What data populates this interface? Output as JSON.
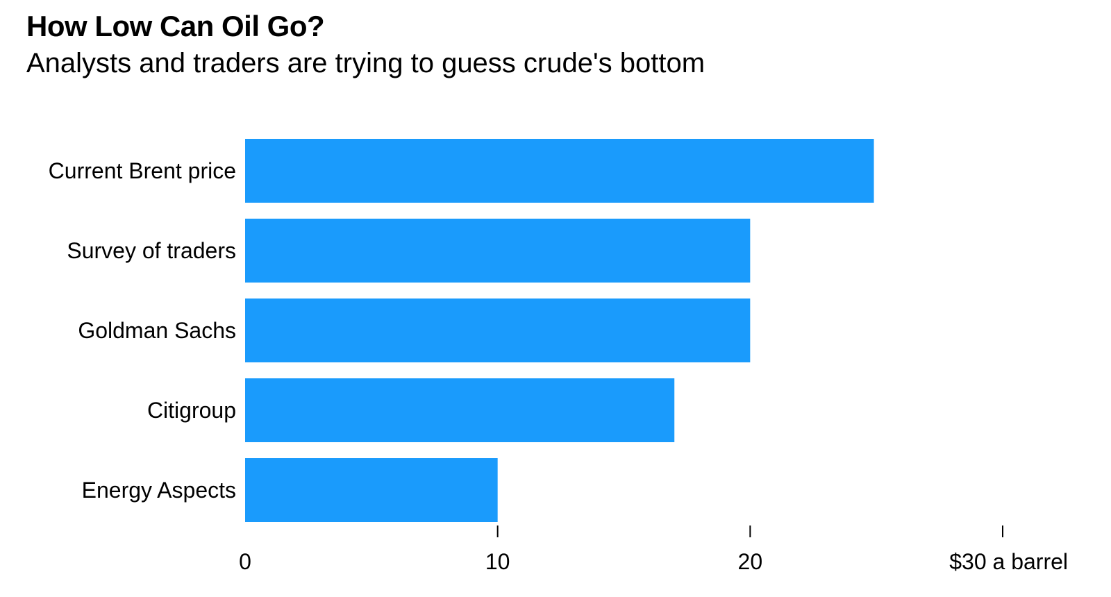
{
  "chart_data": {
    "type": "bar",
    "orientation": "horizontal",
    "title": "How Low Can Oil Go?",
    "subtitle": "Analysts and traders are trying to guess crude's bottom",
    "categories": [
      "Current Brent price",
      "Survey of traders",
      "Goldman Sachs",
      "Citigroup",
      "Energy Aspects"
    ],
    "values": [
      24.9,
      20,
      20,
      17,
      10
    ],
    "xlim": [
      0,
      30
    ],
    "x_ticks": [
      0,
      10,
      20,
      30
    ],
    "x_tick_labels": [
      "0",
      "10",
      "20",
      "$30 a barrel"
    ],
    "xlabel": "",
    "ylabel": "",
    "grid": false,
    "bar_color": "#1a9bfc"
  }
}
